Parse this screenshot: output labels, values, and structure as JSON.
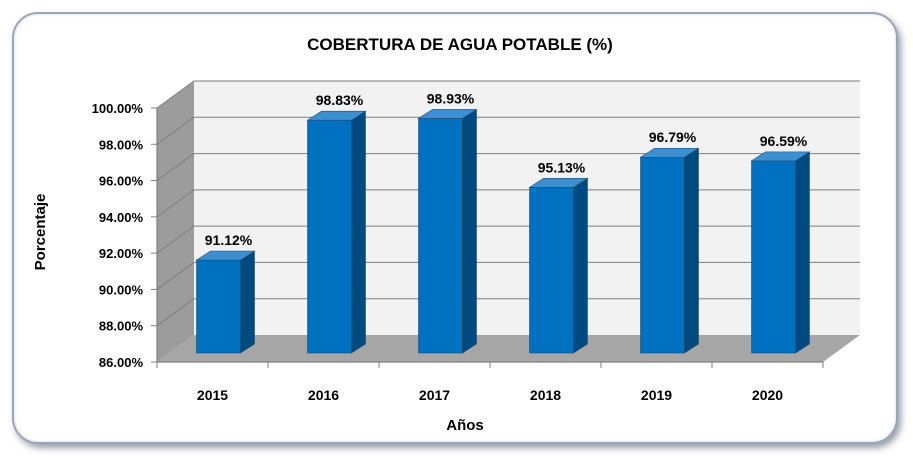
{
  "chart_data": {
    "type": "bar",
    "title": "COBERTURA DE AGUA POTABLE (%)",
    "xlabel": "Años",
    "ylabel": "Porcentaje",
    "categories": [
      "2015",
      "2016",
      "2017",
      "2018",
      "2019",
      "2020"
    ],
    "values": [
      91.12,
      98.83,
      98.93,
      95.13,
      96.79,
      96.59
    ],
    "data_labels": [
      "91.12%",
      "98.83%",
      "98.93%",
      "95.13%",
      "96.79%",
      "96.59%"
    ],
    "ylim": [
      86,
      100
    ],
    "ytick_values": [
      86,
      88,
      90,
      92,
      94,
      96,
      98,
      100
    ],
    "ytick_labels": [
      "86.00%",
      "88.00%",
      "90.00%",
      "92.00%",
      "94.00%",
      "96.00%",
      "98.00%",
      "100.00%"
    ],
    "grid": true,
    "style": "3d-column",
    "colors": {
      "bar_front": "#0070c0",
      "bar_side": "#004a80",
      "bar_top": "#3c8fd0",
      "floor": "#a6a6a6",
      "left_wall": "#9c9c9c",
      "back_wall": "#f2f2f2"
    }
  }
}
